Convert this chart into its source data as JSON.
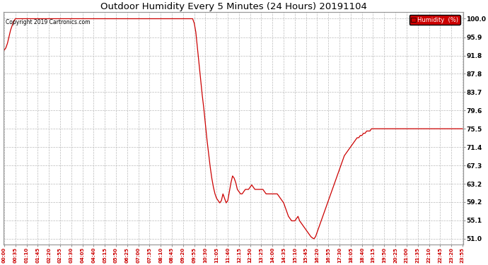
{
  "title": "Outdoor Humidity Every 5 Minutes (24 Hours) 20191104",
  "copyright": "Copyright 2019 Cartronics.com",
  "legend_label": "Humidity  (%)",
  "line_color": "#cc0000",
  "background_color": "#ffffff",
  "grid_color": "#bbbbbb",
  "yticks": [
    51.0,
    55.1,
    59.2,
    63.2,
    67.3,
    71.4,
    75.5,
    79.6,
    83.7,
    87.8,
    91.8,
    95.9,
    100.0
  ],
  "ymin": 49.8,
  "ymax": 101.5,
  "humidity_data": [
    93.0,
    93.5,
    94.5,
    96.0,
    97.5,
    98.5,
    99.5,
    100.0,
    100.0,
    100.0,
    100.0,
    100.0,
    100.0,
    100.0,
    100.0,
    100.0,
    100.0,
    100.0,
    100.0,
    100.0,
    100.0,
    100.0,
    100.0,
    100.0,
    100.0,
    100.0,
    100.0,
    100.0,
    100.0,
    100.0,
    100.0,
    100.0,
    100.0,
    100.0,
    100.0,
    100.0,
    100.0,
    100.0,
    100.0,
    100.0,
    100.0,
    100.0,
    100.0,
    100.0,
    100.0,
    100.0,
    100.0,
    100.0,
    100.0,
    100.0,
    100.0,
    100.0,
    100.0,
    100.0,
    100.0,
    100.0,
    100.0,
    100.0,
    100.0,
    100.0,
    100.0,
    100.0,
    100.0,
    100.0,
    100.0,
    100.0,
    100.0,
    100.0,
    100.0,
    100.0,
    100.0,
    100.0,
    100.0,
    100.0,
    100.0,
    100.0,
    100.0,
    100.0,
    100.0,
    100.0,
    100.0,
    100.0,
    100.0,
    100.0,
    100.0,
    100.0,
    100.0,
    100.0,
    100.0,
    100.0,
    100.0,
    100.0,
    100.0,
    100.0,
    100.0,
    100.0,
    100.0,
    100.0,
    100.0,
    100.0,
    100.0,
    100.0,
    100.0,
    100.0,
    100.0,
    100.0,
    100.0,
    100.0,
    100.0,
    100.0,
    100.0,
    100.0,
    100.0,
    100.0,
    100.0,
    100.0,
    100.0,
    100.0,
    100.0,
    99.0,
    97.0,
    93.5,
    90.0,
    86.5,
    83.0,
    80.0,
    76.5,
    73.0,
    70.0,
    67.0,
    64.5,
    62.5,
    61.0,
    60.0,
    59.5,
    59.0,
    59.5,
    61.0,
    60.0,
    59.0,
    59.5,
    61.5,
    63.5,
    65.0,
    64.5,
    63.5,
    62.0,
    61.5,
    61.0,
    61.0,
    61.5,
    62.0,
    62.0,
    62.0,
    62.5,
    63.0,
    62.5,
    62.0,
    62.0,
    62.0,
    62.0,
    62.0,
    62.0,
    61.5,
    61.0,
    61.0,
    61.0,
    61.0,
    61.0,
    61.0,
    61.0,
    61.0,
    60.5,
    60.0,
    59.5,
    59.0,
    58.0,
    57.0,
    56.0,
    55.5,
    55.0,
    55.0,
    55.0,
    55.5,
    56.0,
    55.0,
    54.5,
    54.0,
    53.5,
    53.0,
    52.5,
    52.0,
    51.5,
    51.2,
    51.0,
    51.5,
    52.5,
    53.5,
    54.5,
    55.5,
    56.5,
    57.5,
    58.5,
    59.5,
    60.5,
    61.5,
    62.5,
    63.5,
    64.5,
    65.5,
    66.5,
    67.5,
    68.5,
    69.5,
    70.0,
    70.5,
    71.0,
    71.5,
    72.0,
    72.5,
    73.0,
    73.5,
    73.5,
    74.0,
    74.0,
    74.5,
    74.5,
    75.0,
    75.0,
    75.0,
    75.5,
    75.5,
    75.5,
    75.5,
    75.5,
    75.5,
    75.5,
    75.5,
    75.5,
    75.5,
    75.5,
    75.5,
    75.5,
    75.5,
    75.5,
    75.5,
    75.5,
    75.5,
    75.5,
    75.5,
    75.5,
    75.5,
    75.5,
    75.5,
    75.5,
    75.5,
    75.5,
    75.5,
    75.5,
    75.5,
    75.5,
    75.5,
    75.5,
    75.5,
    75.5,
    75.5,
    75.5,
    75.5,
    75.5,
    75.5,
    75.5,
    75.5,
    75.5,
    75.5,
    75.5,
    75.5,
    75.5,
    75.5,
    75.5,
    75.5,
    75.5,
    75.5,
    75.5,
    75.5,
    75.5,
    75.5,
    75.5,
    75.5
  ],
  "figwidth": 6.9,
  "figheight": 3.75,
  "dpi": 100
}
